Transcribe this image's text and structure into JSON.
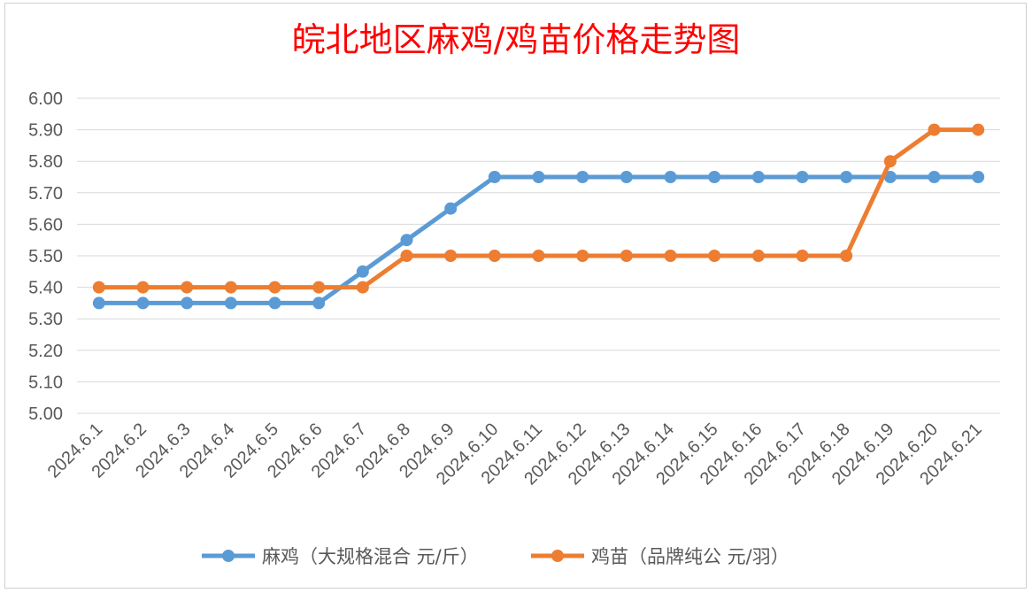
{
  "chart_data": {
    "type": "line",
    "title": "皖北地区麻鸡/鸡苗价格走势图",
    "categories": [
      "2024.6.1",
      "2024.6.2",
      "2024.6.3",
      "2024.6.4",
      "2024.6.5",
      "2024.6.6",
      "2024.6.7",
      "2024.6.8",
      "2024.6.9",
      "2024.6.10",
      "2024.6.11",
      "2024.6.12",
      "2024.6.13",
      "2024.6.14",
      "2024.6.15",
      "2024.6.16",
      "2024.6.17",
      "2024.6.18",
      "2024.6.19",
      "2024.6.20",
      "2024.6.21"
    ],
    "y_ticks": [
      "5.00",
      "5.10",
      "5.20",
      "5.30",
      "5.40",
      "5.50",
      "5.60",
      "5.70",
      "5.80",
      "5.90",
      "6.00"
    ],
    "ylim": [
      5.0,
      6.0
    ],
    "grid": true,
    "legend_position": "bottom",
    "series": [
      {
        "name": "麻鸡（大规格混合 元/斤）",
        "color": "#5b9bd5",
        "values": [
          5.35,
          5.35,
          5.35,
          5.35,
          5.35,
          5.35,
          5.45,
          5.55,
          5.65,
          5.75,
          5.75,
          5.75,
          5.75,
          5.75,
          5.75,
          5.75,
          5.75,
          5.75,
          5.75,
          5.75,
          5.75
        ]
      },
      {
        "name": "鸡苗（品牌纯公 元/羽）",
        "color": "#ed7d31",
        "values": [
          5.4,
          5.4,
          5.4,
          5.4,
          5.4,
          5.4,
          5.4,
          5.5,
          5.5,
          5.5,
          5.5,
          5.5,
          5.5,
          5.5,
          5.5,
          5.5,
          5.5,
          5.5,
          5.8,
          5.9,
          5.9
        ]
      }
    ]
  }
}
